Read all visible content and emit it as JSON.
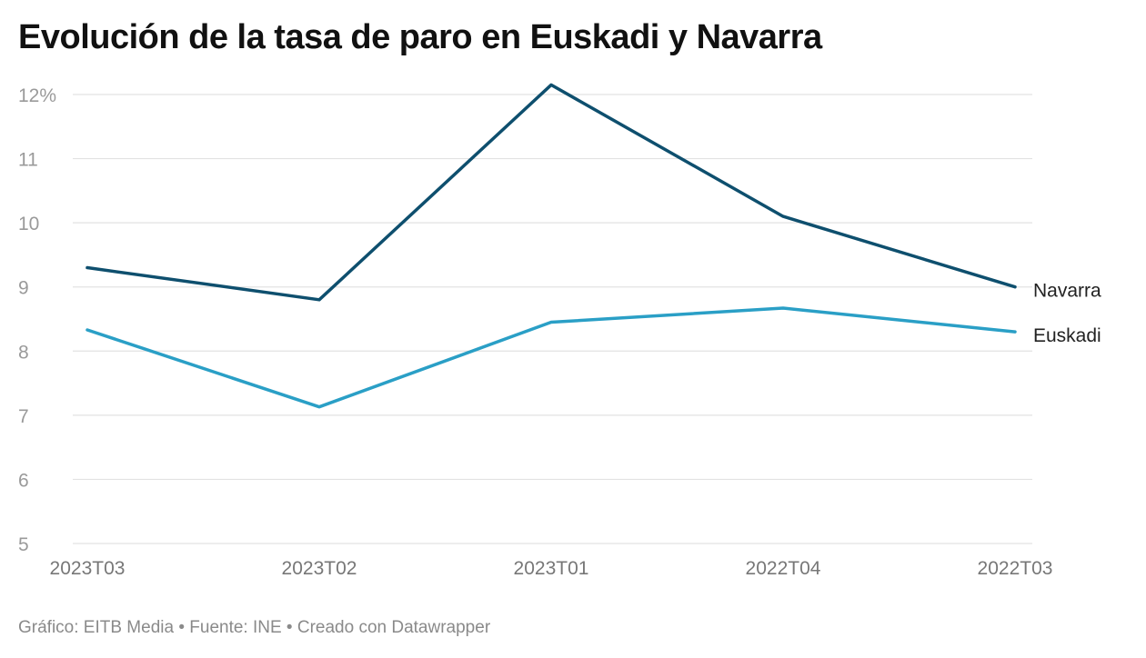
{
  "chart_data": {
    "type": "line",
    "title": "Evolución de la tasa de paro en Euskadi y Navarra",
    "categories": [
      "2023T03",
      "2023T02",
      "2023T01",
      "2022T04",
      "2022T03"
    ],
    "y_ticks": [
      "5",
      "6",
      "7",
      "8",
      "9",
      "10",
      "11",
      "12%"
    ],
    "ylim": [
      5,
      12
    ],
    "grid": true,
    "series": [
      {
        "name": "Navarra",
        "color": "#0e4f6e",
        "values": [
          9.3,
          8.8,
          12.15,
          10.1,
          9.0
        ]
      },
      {
        "name": "Euskadi",
        "color": "#2a9fc6",
        "values": [
          8.33,
          7.13,
          8.45,
          8.67,
          8.3
        ]
      }
    ]
  },
  "footer": {
    "credit": "Gráfico: EITB Media • Fuente: INE • Creado con Datawrapper"
  }
}
